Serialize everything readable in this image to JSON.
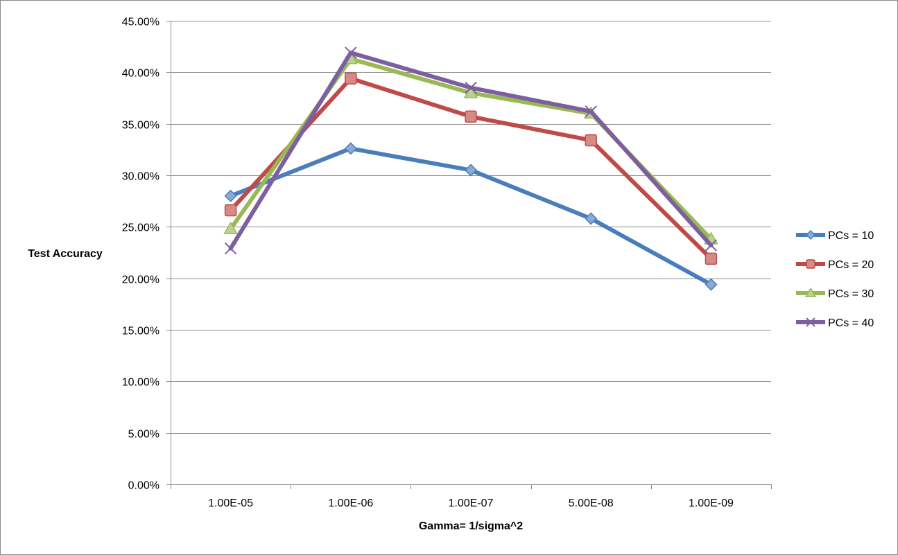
{
  "chart_data": {
    "type": "line",
    "title": "",
    "xlabel": "Gamma= 1/sigma^2",
    "ylabel": "Test Accuracy",
    "categories": [
      "1.00E-05",
      "1.00E-06",
      "1.00E-07",
      "5.00E-08",
      "1.00E-09"
    ],
    "ylim": [
      0,
      0.45
    ],
    "yticks": [
      "0.00%",
      "5.00%",
      "10.00%",
      "15.00%",
      "20.00%",
      "25.00%",
      "30.00%",
      "35.00%",
      "40.00%",
      "45.00%"
    ],
    "grid": "horizontal",
    "legend_position": "right",
    "series": [
      {
        "name": "PCs = 10",
        "values": [
          0.28,
          0.326,
          0.305,
          0.258,
          0.194
        ],
        "color": "#4a7ebb",
        "marker": "diamond"
      },
      {
        "name": "PCs = 20",
        "values": [
          0.266,
          0.394,
          0.357,
          0.334,
          0.219
        ],
        "color": "#be4b48",
        "marker": "square"
      },
      {
        "name": "PCs = 30",
        "values": [
          0.248,
          0.413,
          0.38,
          0.36,
          0.238
        ],
        "color": "#98b954",
        "marker": "triangle"
      },
      {
        "name": "PCs = 40",
        "values": [
          0.229,
          0.419,
          0.385,
          0.362,
          0.232
        ],
        "color": "#7d5fa0",
        "marker": "x"
      }
    ]
  }
}
